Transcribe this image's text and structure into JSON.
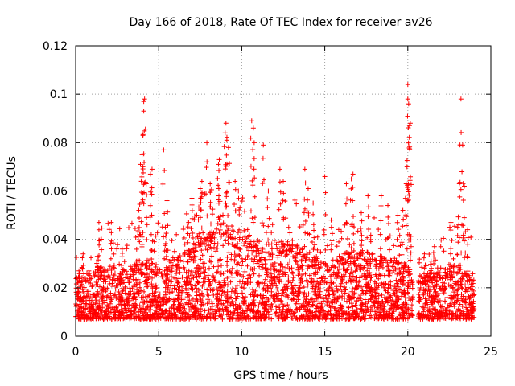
{
  "chart_data": {
    "type": "scatter",
    "title": "Day 166 of 2018, Rate Of TEC Index for receiver av26",
    "xlabel": "GPS time / hours",
    "ylabel": "ROTI / TECUs",
    "xlim": [
      0,
      25
    ],
    "ylim": [
      0,
      0.12
    ],
    "x_ticks": [
      0,
      5,
      10,
      15,
      20,
      25
    ],
    "x_tick_labels": [
      "0",
      "5",
      "10",
      "15",
      "20",
      "25"
    ],
    "y_ticks": [
      0,
      0.02,
      0.04,
      0.06,
      0.08,
      0.1,
      0.12
    ],
    "y_tick_labels": [
      "0",
      "0.02",
      "0.04",
      "0.06",
      "0.08",
      "0.1",
      "0.12"
    ],
    "grid": true,
    "marker": "plus",
    "marker_color": "#ff0000",
    "series": [
      {
        "name": "ROTI",
        "peaks": [
          {
            "x": 0.2,
            "y": 0.027
          },
          {
            "x": 0.45,
            "y": 0.034
          },
          {
            "x": 1.3,
            "y": 0.033
          },
          {
            "x": 1.4,
            "y": 0.047
          },
          {
            "x": 2.15,
            "y": 0.047
          },
          {
            "x": 2.8,
            "y": 0.036
          },
          {
            "x": 3.8,
            "y": 0.052
          },
          {
            "x": 3.9,
            "y": 0.071
          },
          {
            "x": 4.0,
            "y": 0.075
          },
          {
            "x": 4.05,
            "y": 0.083
          },
          {
            "x": 4.1,
            "y": 0.093
          },
          {
            "x": 4.1,
            "y": 0.097
          },
          {
            "x": 4.15,
            "y": 0.098
          },
          {
            "x": 4.25,
            "y": 0.063
          },
          {
            "x": 4.5,
            "y": 0.067
          },
          {
            "x": 4.6,
            "y": 0.069
          },
          {
            "x": 5.3,
            "y": 0.077
          },
          {
            "x": 5.4,
            "y": 0.045
          },
          {
            "x": 5.5,
            "y": 0.056
          },
          {
            "x": 6.8,
            "y": 0.047
          },
          {
            "x": 7.0,
            "y": 0.057
          },
          {
            "x": 7.5,
            "y": 0.061
          },
          {
            "x": 7.6,
            "y": 0.064
          },
          {
            "x": 7.9,
            "y": 0.08
          },
          {
            "x": 8.1,
            "y": 0.063
          },
          {
            "x": 8.6,
            "y": 0.071
          },
          {
            "x": 8.65,
            "y": 0.073
          },
          {
            "x": 9.0,
            "y": 0.084
          },
          {
            "x": 9.05,
            "y": 0.088
          },
          {
            "x": 9.1,
            "y": 0.081
          },
          {
            "x": 9.2,
            "y": 0.078
          },
          {
            "x": 9.6,
            "y": 0.064
          },
          {
            "x": 9.8,
            "y": 0.06
          },
          {
            "x": 10.6,
            "y": 0.089
          },
          {
            "x": 10.7,
            "y": 0.086
          },
          {
            "x": 10.75,
            "y": 0.08
          },
          {
            "x": 11.3,
            "y": 0.079
          },
          {
            "x": 11.6,
            "y": 0.06
          },
          {
            "x": 12.3,
            "y": 0.069
          },
          {
            "x": 12.5,
            "y": 0.064
          },
          {
            "x": 13.8,
            "y": 0.069
          },
          {
            "x": 14.0,
            "y": 0.061
          },
          {
            "x": 14.3,
            "y": 0.055
          },
          {
            "x": 15.0,
            "y": 0.066
          },
          {
            "x": 15.4,
            "y": 0.045
          },
          {
            "x": 16.3,
            "y": 0.063
          },
          {
            "x": 16.6,
            "y": 0.065
          },
          {
            "x": 16.7,
            "y": 0.067
          },
          {
            "x": 17.2,
            "y": 0.051
          },
          {
            "x": 17.6,
            "y": 0.058
          },
          {
            "x": 18.4,
            "y": 0.058
          },
          {
            "x": 18.8,
            "y": 0.054
          },
          {
            "x": 19.4,
            "y": 0.05
          },
          {
            "x": 19.7,
            "y": 0.052
          },
          {
            "x": 19.9,
            "y": 0.063
          },
          {
            "x": 19.95,
            "y": 0.07
          },
          {
            "x": 20.0,
            "y": 0.098
          },
          {
            "x": 20.0,
            "y": 0.104
          },
          {
            "x": 20.05,
            "y": 0.096
          },
          {
            "x": 20.1,
            "y": 0.087
          },
          {
            "x": 20.15,
            "y": 0.088
          },
          {
            "x": 20.2,
            "y": 0.037
          },
          {
            "x": 21.0,
            "y": 0.034
          },
          {
            "x": 21.4,
            "y": 0.031
          },
          {
            "x": 21.6,
            "y": 0.037
          },
          {
            "x": 22.6,
            "y": 0.047
          },
          {
            "x": 23.0,
            "y": 0.045
          },
          {
            "x": 23.1,
            "y": 0.063
          },
          {
            "x": 23.2,
            "y": 0.098
          },
          {
            "x": 23.3,
            "y": 0.079
          },
          {
            "x": 23.4,
            "y": 0.062
          },
          {
            "x": 23.6,
            "y": 0.044
          }
        ],
        "baseline_profile": {
          "x": [
            0,
            1,
            2,
            3,
            4,
            5,
            6,
            7,
            8,
            9,
            10,
            11,
            12,
            13,
            14,
            15,
            16,
            17,
            18,
            19,
            20,
            20.3,
            21,
            22,
            23,
            24
          ],
          "typical_max": [
            0.02,
            0.024,
            0.026,
            0.024,
            0.028,
            0.026,
            0.028,
            0.034,
            0.04,
            0.042,
            0.038,
            0.036,
            0.036,
            0.035,
            0.032,
            0.026,
            0.03,
            0.032,
            0.03,
            0.028,
            0.026,
            0.02,
            0.022,
            0.024,
            0.026,
            0.018
          ],
          "min": 0.003,
          "gaps": [
            [
              20.3,
              20.6
            ]
          ]
        }
      }
    ]
  }
}
